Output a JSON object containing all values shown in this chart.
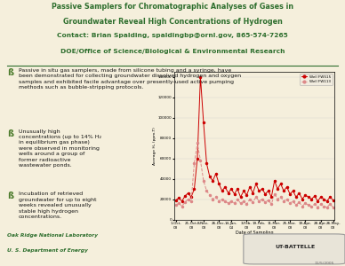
{
  "bg_color": "#f5efdc",
  "title_lines": [
    "Passive Samplers for Chromatographic Analyses of Gases in",
    "Groundwater Reveal High Concentrations of Hydrogen",
    "Contact: Brian Spalding, spaldingbp@ornl.gov, 865-574-7265",
    "DOE/Office of Science/Biological & Environmental Research"
  ],
  "title_color": "#2d6e2d",
  "contact_color": "#7b2d8b",
  "bullet_color": "#4a7a2a",
  "ornl_text": "Oak Ridge National Laboratory",
  "doe_text": "U. S. Department of Energy",
  "ornl_color": "#2d6e2d",
  "date_text": "11/5/2005",
  "chart": {
    "well1_label": "Well FW515",
    "well2_label": "Well FW113",
    "well1_color": "#cc0000",
    "well2_color": "#dd8888",
    "ylabel": "Average H₂ (ppm-T)",
    "xlabel": "Date of Sampling"
  }
}
